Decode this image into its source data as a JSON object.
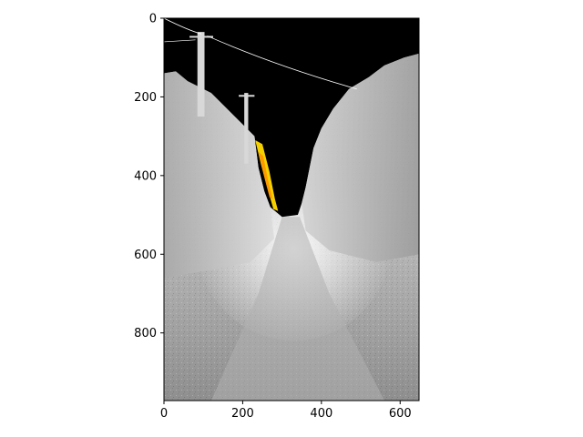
{
  "chart_data": {
    "type": "heatmap",
    "description_free": true,
    "title": "",
    "xlabel": "",
    "ylabel": "",
    "xlim": [
      0,
      648
    ],
    "ylim": [
      972,
      0
    ],
    "x_ticks": [
      0,
      200,
      400,
      600
    ],
    "y_ticks": [
      0,
      200,
      400,
      600,
      800
    ],
    "y_axis_inverted": true,
    "grid": false,
    "legend": "none",
    "colormap": "grayscale with black and hot highlights",
    "image_colors": {
      "sky": "#000000",
      "ground": "#9a9a9a",
      "haze": "#e6e6e6",
      "highlight": "#f5d000"
    }
  }
}
